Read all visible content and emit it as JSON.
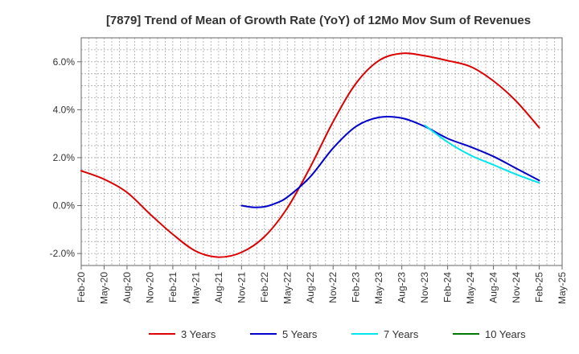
{
  "chart_data": {
    "type": "line",
    "title": "[7879]  Trend of Mean of Growth Rate (YoY) of 12Mo Mov Sum of Revenues",
    "xlabel": "",
    "ylabel": "",
    "ylim": [
      -2.5,
      7.0
    ],
    "yticks": [
      -2.0,
      0.0,
      2.0,
      4.0,
      6.0
    ],
    "ytick_labels": [
      "-2.0%",
      "0.0%",
      "2.0%",
      "4.0%",
      "6.0%"
    ],
    "x_categories": [
      "Feb-20",
      "May-20",
      "Aug-20",
      "Nov-20",
      "Feb-21",
      "May-21",
      "Aug-21",
      "Nov-21",
      "Feb-22",
      "May-22",
      "Aug-22",
      "Nov-22",
      "Feb-23",
      "May-23",
      "Aug-23",
      "Nov-23",
      "Feb-24",
      "May-24",
      "Aug-24",
      "Nov-24",
      "Feb-25",
      "May-25"
    ],
    "grid": true,
    "legend_position": "bottom",
    "series": [
      {
        "name": "3 Years",
        "color": "#dd0000",
        "points": [
          [
            0,
            1.45
          ],
          [
            1,
            1.1
          ],
          [
            2,
            0.55
          ],
          [
            3,
            -0.35
          ],
          [
            4,
            -1.2
          ],
          [
            5,
            -1.9
          ],
          [
            6,
            -2.15
          ],
          [
            7,
            -1.95
          ],
          [
            8,
            -1.3
          ],
          [
            9,
            -0.1
          ],
          [
            10,
            1.6
          ],
          [
            11,
            3.5
          ],
          [
            12,
            5.1
          ],
          [
            13,
            6.05
          ],
          [
            14,
            6.35
          ],
          [
            15,
            6.25
          ],
          [
            16,
            6.05
          ],
          [
            17,
            5.8
          ],
          [
            18,
            5.2
          ],
          [
            19,
            4.35
          ],
          [
            20,
            3.25
          ]
        ]
      },
      {
        "name": "5 Years",
        "color": "#0000cc",
        "points": [
          [
            7,
            0.0
          ],
          [
            7.5,
            -0.07
          ],
          [
            8,
            -0.05
          ],
          [
            8.5,
            0.1
          ],
          [
            9,
            0.35
          ],
          [
            10,
            1.2
          ],
          [
            11,
            2.4
          ],
          [
            12,
            3.3
          ],
          [
            13,
            3.68
          ],
          [
            14,
            3.65
          ],
          [
            15,
            3.3
          ],
          [
            16,
            2.8
          ],
          [
            17,
            2.45
          ],
          [
            18,
            2.05
          ],
          [
            19,
            1.55
          ],
          [
            20,
            1.05
          ]
        ]
      },
      {
        "name": "7 Years",
        "color": "#00e5ee",
        "points": [
          [
            15,
            3.35
          ],
          [
            16,
            2.65
          ],
          [
            17,
            2.1
          ],
          [
            18,
            1.7
          ],
          [
            19,
            1.3
          ],
          [
            20,
            0.95
          ]
        ]
      },
      {
        "name": "10 Years",
        "color": "#007700",
        "points": []
      }
    ]
  }
}
